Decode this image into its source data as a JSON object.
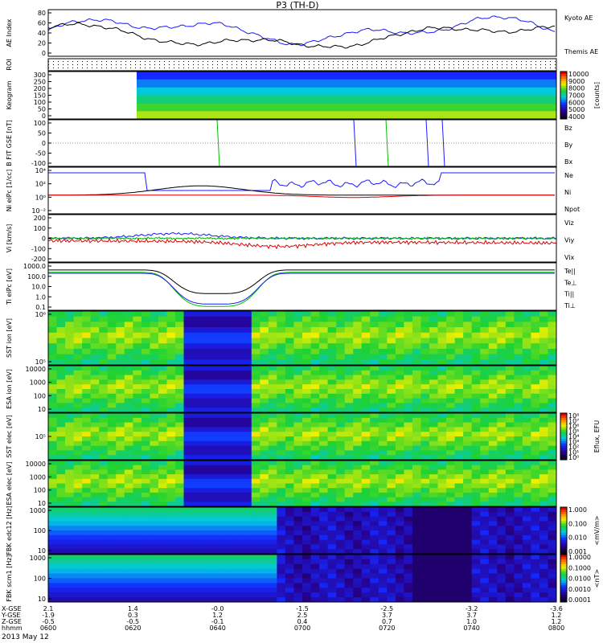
{
  "title": "P3 (TH-D)",
  "date_label": "2013 May 12",
  "colors": {
    "blue": "#1a1aff",
    "red": "#e00000",
    "green": "#00c000",
    "black": "#000000",
    "white": "#ffffff"
  },
  "chart_data": {
    "type": "line",
    "x_axis": {
      "rows": [
        {
          "label": "X-GSE",
          "values": [
            "2.1",
            "1.4",
            "-0.0",
            "-1.5",
            "-2.5",
            "-3.2",
            "-3.6"
          ]
        },
        {
          "label": "Y-GSE",
          "values": [
            "-1.9",
            "0.3",
            "1.2",
            "2.5",
            "3.7",
            "3.7",
            "1.2"
          ]
        },
        {
          "label": "Z-GSE",
          "values": [
            "-0.5",
            "-0.5",
            "-0.1",
            "0.4",
            "0.7",
            "1.0",
            "1.2"
          ]
        },
        {
          "label": "hhmm",
          "values": [
            "0600",
            "0620",
            "0640",
            "0700",
            "0720",
            "0740",
            "0800"
          ]
        }
      ]
    },
    "panels": [
      {
        "name": "ae",
        "ylabel": "AE Index",
        "yticks": [
          "80",
          "60",
          "40",
          "20",
          "0"
        ],
        "legend": [
          "Kyoto AE",
          "Themis AE"
        ]
      },
      {
        "name": "roi",
        "ylabel": "ROI",
        "yticks": [],
        "legend": []
      },
      {
        "name": "keogram",
        "ylabel": "Keogram",
        "yticks": [
          "300",
          "250",
          "200",
          "150",
          "100",
          "50",
          "0"
        ],
        "legend": [],
        "colorbar": {
          "ticks": [
            "10000",
            "9000",
            "8000",
            "7000",
            "6000",
            "5000",
            "4000"
          ],
          "label": "[counts]"
        }
      },
      {
        "name": "bfield",
        "ylabel": "B FIT GSE [nT]",
        "yticks": [
          "100",
          "50",
          "0",
          "-50",
          "-100"
        ],
        "legend": [
          "Bz",
          "By",
          "Bx"
        ]
      },
      {
        "name": "density",
        "ylabel": "Ni eiPc [1/cc]",
        "yticks": [
          "10⁴",
          "10²",
          "10⁰",
          "10⁻²"
        ],
        "legend": [
          "Ne",
          "Ni",
          "Npot"
        ]
      },
      {
        "name": "velocity",
        "ylabel": "Vi [km/s]",
        "yticks": [
          "200",
          "100",
          "0",
          "-100",
          "-200"
        ],
        "legend": [
          "Viz",
          "Viy",
          "Vix"
        ]
      },
      {
        "name": "temperature",
        "ylabel": "Ti eiPc [eV]",
        "yticks": [
          "1000.0",
          "100.0",
          "10.0",
          "1.0",
          "0.1"
        ],
        "legend": [
          "Te||",
          "Te⊥",
          "Ti||",
          "Ti⊥"
        ]
      },
      {
        "name": "sst_ion",
        "ylabel": "SST ion [eV]",
        "yticks": [
          "10⁶",
          "10⁵"
        ],
        "legend": []
      },
      {
        "name": "esa_ion",
        "ylabel": "ESA ion [eV]",
        "yticks": [
          "10000",
          "1000",
          "100",
          "10"
        ],
        "legend": []
      },
      {
        "name": "sst_elec",
        "ylabel": "SST elec [eV]",
        "yticks": [
          "10⁵"
        ],
        "legend": [],
        "colorbar": {
          "ticks": [
            "10⁸",
            "10⁷",
            "10⁶",
            "10⁵",
            "10⁴",
            "10³",
            "10²",
            "10¹",
            "10⁰"
          ],
          "label": "Eflux, EFU"
        }
      },
      {
        "name": "esa_elec",
        "ylabel": "ESA elec [eV]",
        "yticks": [
          "10000",
          "1000",
          "100",
          "10"
        ],
        "legend": []
      },
      {
        "name": "fbk_edc",
        "ylabel": "FBK edc12 [Hz]",
        "yticks": [
          "1000",
          "100",
          "10"
        ],
        "legend": [],
        "colorbar": {
          "ticks": [
            "1.000",
            "0.100",
            "0.010",
            "0.001"
          ],
          "label": "<mV/m>"
        }
      },
      {
        "name": "fbk_scm",
        "ylabel": "FBK scm1 [Hz]",
        "yticks": [
          "1000",
          "100",
          "10"
        ],
        "legend": [],
        "colorbar": {
          "ticks": [
            "1.0000",
            "0.1000",
            "0.0100",
            "0.0010",
            "0.0001"
          ],
          "label": "<nT>"
        }
      }
    ],
    "grid": false
  }
}
